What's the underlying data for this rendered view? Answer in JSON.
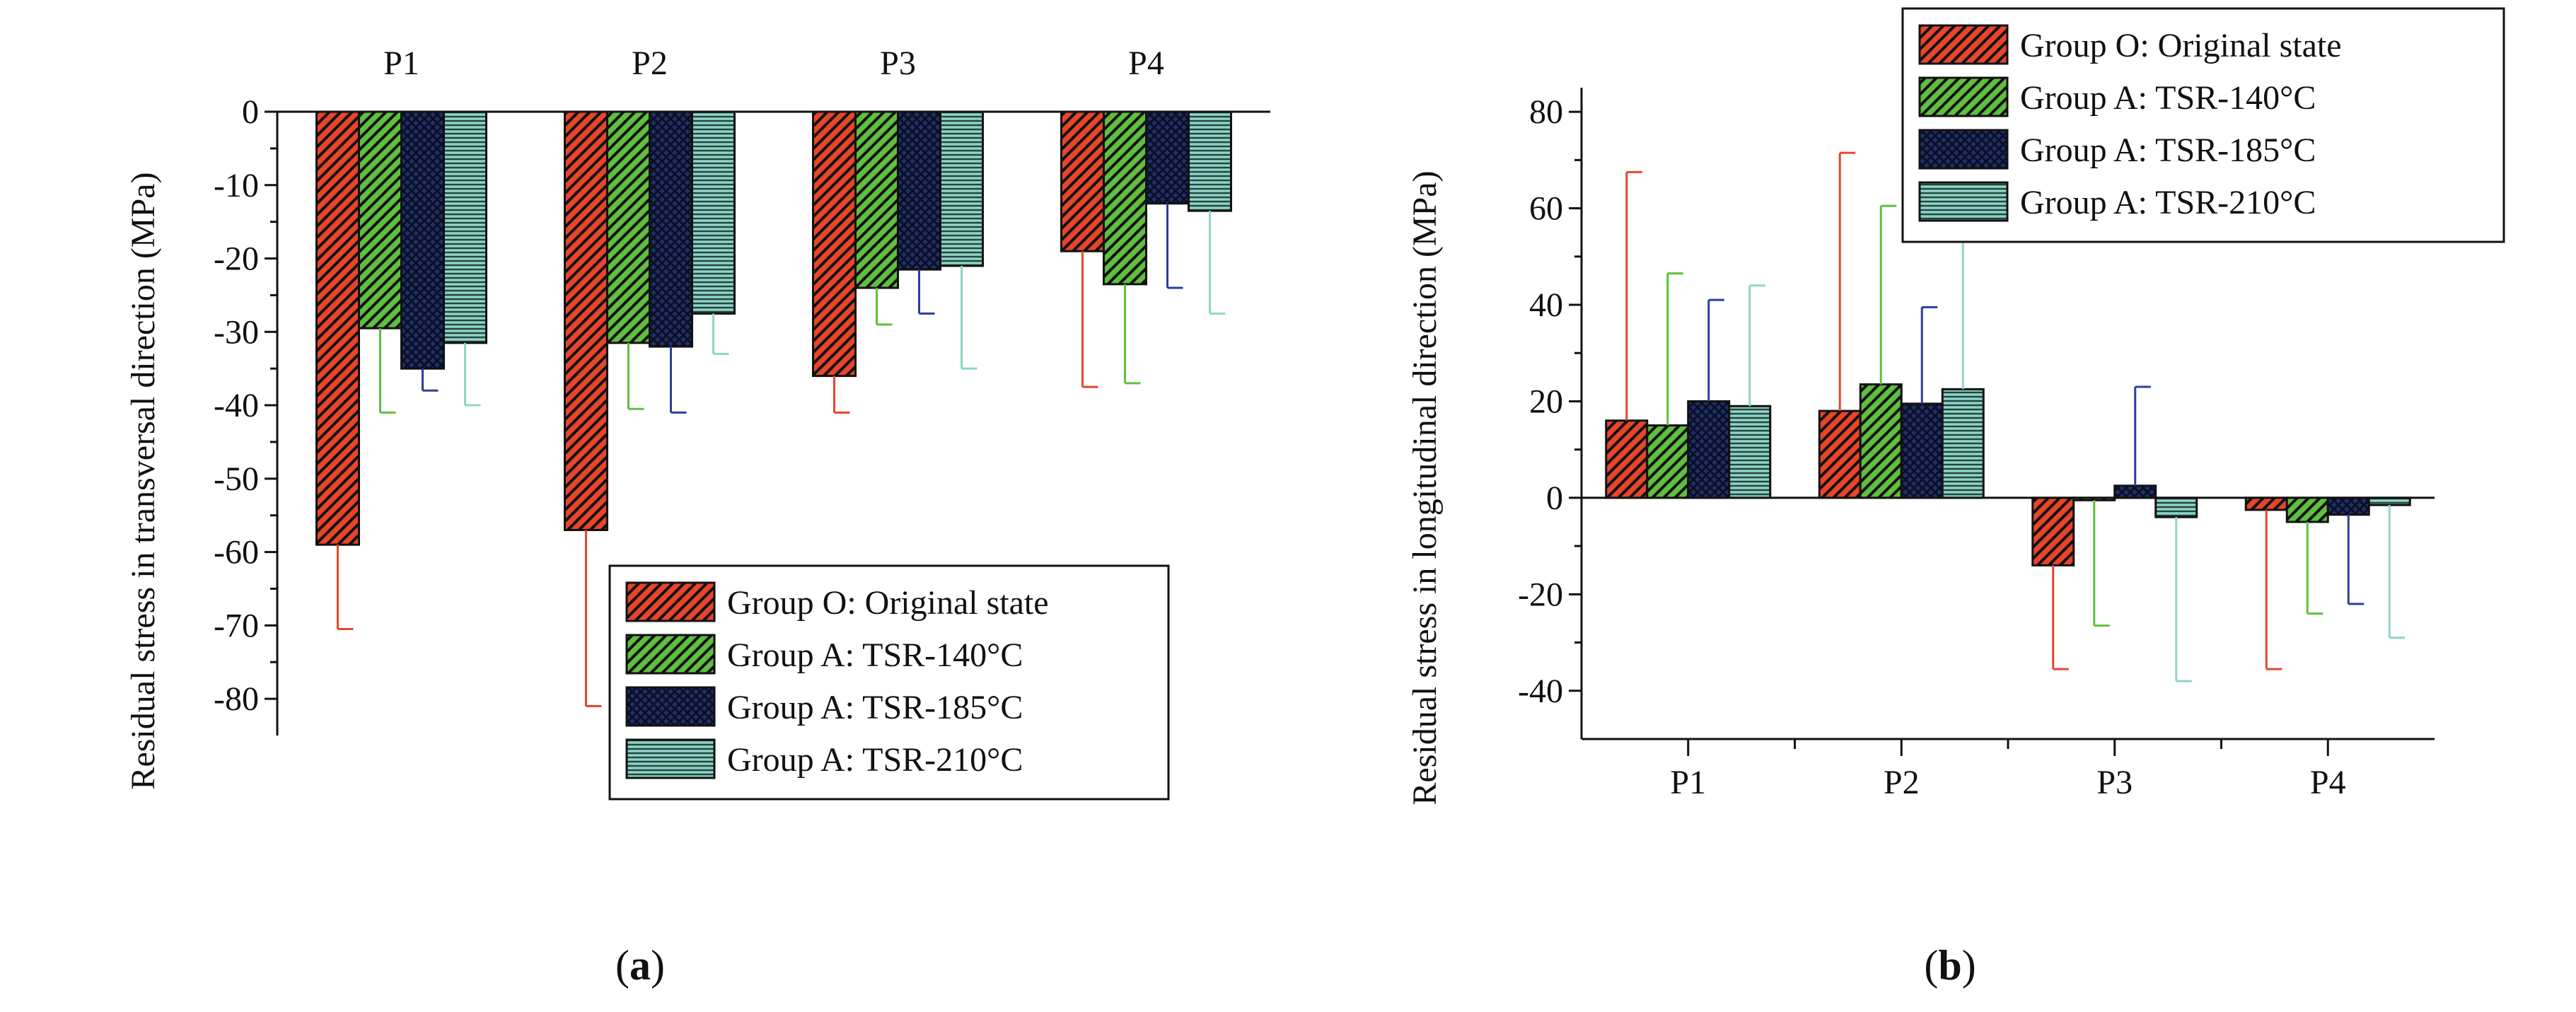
{
  "chart_data": [
    {
      "type": "bar",
      "panel_label": "a",
      "categories": [
        "P1",
        "P2",
        "P3",
        "P4"
      ],
      "ylabel": "Residual stress in transversal direction (MPa)",
      "xlabel": "",
      "ylim": [
        -85,
        0
      ],
      "yticks": [
        0,
        -10,
        -20,
        -30,
        -40,
        -50,
        -60,
        -70,
        -80
      ],
      "legend_position": "bottom-right",
      "series": [
        {
          "name": "Group O: Original state",
          "color": "#e8452a",
          "hatch": "diag",
          "error_color": "#e8452a",
          "values": [
            -59,
            -57,
            -36,
            -19
          ],
          "errors": [
            11.5,
            24,
            5,
            18.5
          ]
        },
        {
          "name": "Group A: TSR-140°C",
          "color": "#5fbf3f",
          "hatch": "diag",
          "error_color": "#5fbf3f",
          "values": [
            -29.5,
            -31.5,
            -24,
            -23.5
          ],
          "errors": [
            11.5,
            9,
            5,
            13.5
          ]
        },
        {
          "name": "Group A: TSR-185°C",
          "color": "#1f2f66",
          "hatch": "cross",
          "error_color": "#2c3f9a",
          "values": [
            -35,
            -32,
            -21.5,
            -12.5
          ],
          "errors": [
            3,
            9,
            6,
            11.5
          ]
        },
        {
          "name": "Group A: TSR-210°C",
          "color": "#8fd4c8",
          "hatch": "horiz",
          "error_color": "#8fd4c8",
          "values": [
            -31.5,
            -27.5,
            -21,
            -13.5
          ],
          "errors": [
            8.5,
            5.5,
            14,
            14
          ]
        }
      ]
    },
    {
      "type": "bar",
      "panel_label": "b",
      "categories": [
        "P1",
        "P2",
        "P3",
        "P4"
      ],
      "ylabel": "Residual stress in longitudinal direction (MPa)",
      "xlabel": "",
      "ylim": [
        -50,
        85
      ],
      "yticks": [
        80,
        60,
        40,
        20,
        0,
        -20,
        -40
      ],
      "legend_position": "top-right",
      "series": [
        {
          "name": "Group O: Original state",
          "color": "#e8452a",
          "hatch": "diag",
          "error_color": "#e8452a",
          "values": [
            16,
            18,
            -14,
            -2.5
          ],
          "errors": [
            51.5,
            53.5,
            21.5,
            33
          ]
        },
        {
          "name": "Group A: TSR-140°C",
          "color": "#5fbf3f",
          "hatch": "diag",
          "error_color": "#5fbf3f",
          "values": [
            15,
            23.5,
            -0.5,
            -5
          ],
          "errors": [
            31.5,
            37,
            26,
            19
          ]
        },
        {
          "name": "Group A: TSR-185°C",
          "color": "#1f2f66",
          "hatch": "cross",
          "error_color": "#2c3f9a",
          "values": [
            20,
            19.5,
            2.5,
            -3.5
          ],
          "errors": [
            21,
            20,
            20.5,
            18.5
          ]
        },
        {
          "name": "Group A: TSR-210°C",
          "color": "#8fd4c8",
          "hatch": "horiz",
          "error_color": "#8fd4c8",
          "values": [
            19,
            22.5,
            -4,
            -1.5
          ],
          "errors": [
            25,
            35,
            34,
            27.5
          ]
        }
      ]
    }
  ]
}
